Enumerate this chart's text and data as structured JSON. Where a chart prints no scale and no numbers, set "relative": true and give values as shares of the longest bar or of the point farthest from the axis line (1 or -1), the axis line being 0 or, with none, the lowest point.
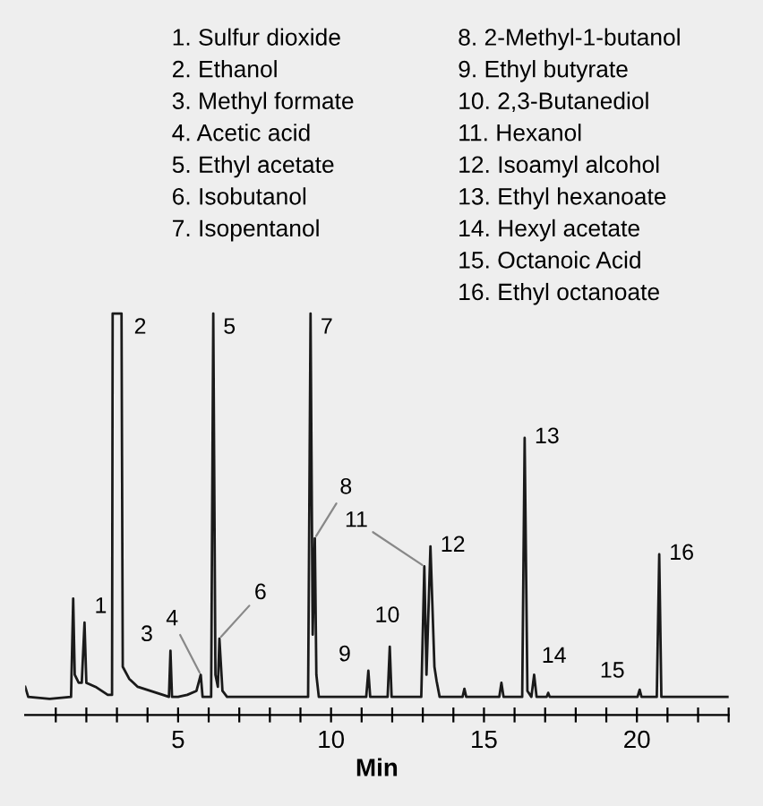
{
  "chart_data": {
    "type": "line",
    "relative": true,
    "xlabel": "Min",
    "color": "#1a1a1a",
    "grid": false,
    "legend": false,
    "marker": "none",
    "line_style": "solid",
    "xlim": [
      0,
      23
    ],
    "xticks": [
      {
        "value": 1,
        "label": null
      },
      {
        "value": 2,
        "label": null
      },
      {
        "value": 3,
        "label": null
      },
      {
        "value": 4,
        "label": null
      },
      5,
      {
        "value": 6,
        "label": null
      },
      {
        "value": 7,
        "label": null
      },
      {
        "value": 8,
        "label": null
      },
      {
        "value": 9,
        "label": null
      },
      10,
      {
        "value": 11,
        "label": null
      },
      {
        "value": 12,
        "label": null
      },
      {
        "value": 13,
        "label": null
      },
      {
        "value": 14,
        "label": null
      },
      15,
      {
        "value": 16,
        "label": null
      },
      {
        "value": 17,
        "label": null
      },
      {
        "value": 18,
        "label": null
      },
      {
        "value": 19,
        "label": null
      },
      20,
      {
        "value": 21,
        "label": null
      },
      {
        "value": 22,
        "label": null
      },
      {
        "value": 23,
        "label": null
      }
    ],
    "x": [
      0.0,
      0.1,
      0.8,
      1.5,
      1.57,
      1.62,
      1.75,
      1.85,
      1.94,
      2.0,
      2.3,
      2.7,
      2.84,
      2.86,
      3.15,
      3.19,
      3.4,
      3.68,
      4.5,
      4.7,
      4.75,
      4.8,
      5.0,
      5.3,
      5.6,
      5.74,
      5.8,
      6.08,
      6.15,
      6.22,
      6.3,
      6.35,
      6.45,
      6.6,
      9.25,
      9.33,
      9.4,
      9.47,
      9.52,
      9.6,
      11.15,
      11.22,
      11.28,
      11.85,
      11.92,
      11.98,
      12.95,
      13.05,
      13.12,
      13.25,
      13.38,
      13.45,
      13.55,
      14.3,
      14.36,
      14.42,
      15.5,
      15.57,
      15.64,
      16.25,
      16.33,
      16.42,
      16.55,
      16.64,
      16.72,
      17.05,
      17.1,
      17.15,
      20.02,
      20.09,
      20.15,
      20.65,
      20.73,
      20.8,
      23.0
    ],
    "values": [
      0.07,
      0.045,
      0.04,
      0.045,
      0.29,
      0.1,
      0.08,
      0.08,
      0.23,
      0.08,
      0.07,
      0.05,
      0.05,
      1.0,
      1.0,
      0.12,
      0.09,
      0.07,
      0.05,
      0.045,
      0.16,
      0.045,
      0.045,
      0.05,
      0.06,
      0.1,
      0.045,
      0.045,
      1.0,
      0.1,
      0.07,
      0.19,
      0.06,
      0.045,
      0.045,
      1.0,
      0.2,
      0.44,
      0.1,
      0.045,
      0.045,
      0.11,
      0.045,
      0.045,
      0.17,
      0.045,
      0.045,
      0.37,
      0.1,
      0.42,
      0.12,
      0.085,
      0.045,
      0.045,
      0.065,
      0.045,
      0.045,
      0.08,
      0.045,
      0.045,
      0.69,
      0.06,
      0.045,
      0.1,
      0.045,
      0.045,
      0.055,
      0.045,
      0.045,
      0.063,
      0.045,
      0.045,
      0.4,
      0.045,
      0.045
    ],
    "annotations": [
      {
        "text": "1",
        "x": 1.94,
        "y": 0.23
      },
      {
        "text": "2",
        "x": 3.15,
        "y": 1.0
      },
      {
        "text": "3",
        "x": 4.75,
        "y": 0.16
      },
      {
        "text": "4",
        "x": 5.74,
        "y": 0.1
      },
      {
        "text": "5",
        "x": 6.15,
        "y": 1.0
      },
      {
        "text": "6",
        "x": 6.35,
        "y": 0.19
      },
      {
        "text": "7",
        "x": 9.33,
        "y": 1.0
      },
      {
        "text": "8",
        "x": 9.47,
        "y": 0.44
      },
      {
        "text": "9",
        "x": 11.22,
        "y": 0.11
      },
      {
        "text": "10",
        "x": 11.92,
        "y": 0.17
      },
      {
        "text": "11",
        "x": 13.05,
        "y": 0.37
      },
      {
        "text": "12",
        "x": 13.25,
        "y": 0.42
      },
      {
        "text": "13",
        "x": 16.33,
        "y": 0.69
      },
      {
        "text": "14",
        "x": 16.64,
        "y": 0.1
      },
      {
        "text": "15",
        "x": 20.09,
        "y": 0.063
      },
      {
        "text": "16",
        "x": 20.73,
        "y": 0.4
      },
      "1. Sulfur dioxide",
      "2. Ethanol",
      "3. Methyl formate",
      "4. Acetic acid",
      "5. Ethyl acetate",
      "6. Isobutanol",
      "7. Isopentanol",
      "8. 2-Methyl-1-butanol",
      "9. Ethyl butyrate",
      "10. 2,3-Butanediol",
      "11. Hexanol",
      "12. Isoamyl alcohol",
      "13. Ethyl hexanoate",
      "14. Hexyl acetate",
      "15. Octanoic Acid",
      "16. Ethyl octanoate"
    ]
  }
}
